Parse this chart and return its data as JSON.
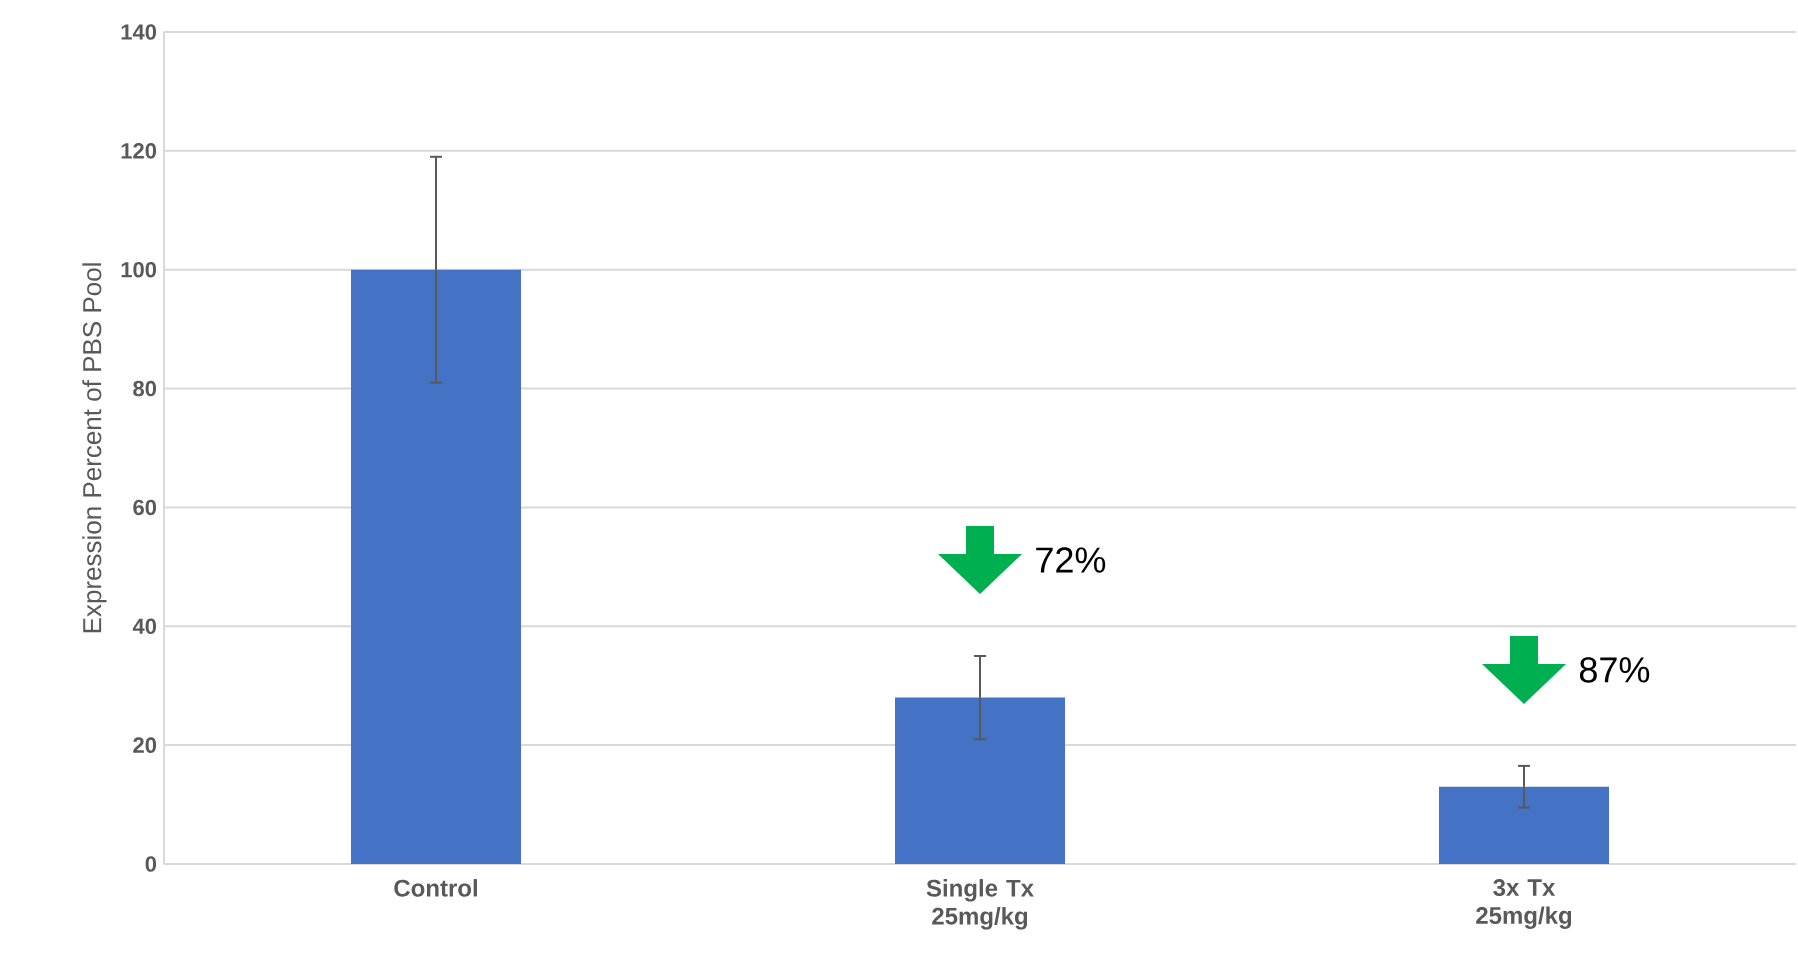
{
  "chart_data": {
    "type": "bar",
    "ylabel": "Expression Percent of PBS Pool",
    "categories": [
      "Control",
      "Single Tx 25mg/kg",
      "3x Tx 25mg/kg"
    ],
    "values": [
      100,
      28,
      13
    ],
    "errors": [
      19,
      7,
      3.5
    ],
    "color": "#4472c4",
    "ylim": [
      0,
      140
    ],
    "yticks": [
      0,
      20,
      40,
      60,
      80,
      100,
      120,
      140
    ],
    "grid": "y",
    "annotations": [
      "72%",
      "87%"
    ]
  }
}
